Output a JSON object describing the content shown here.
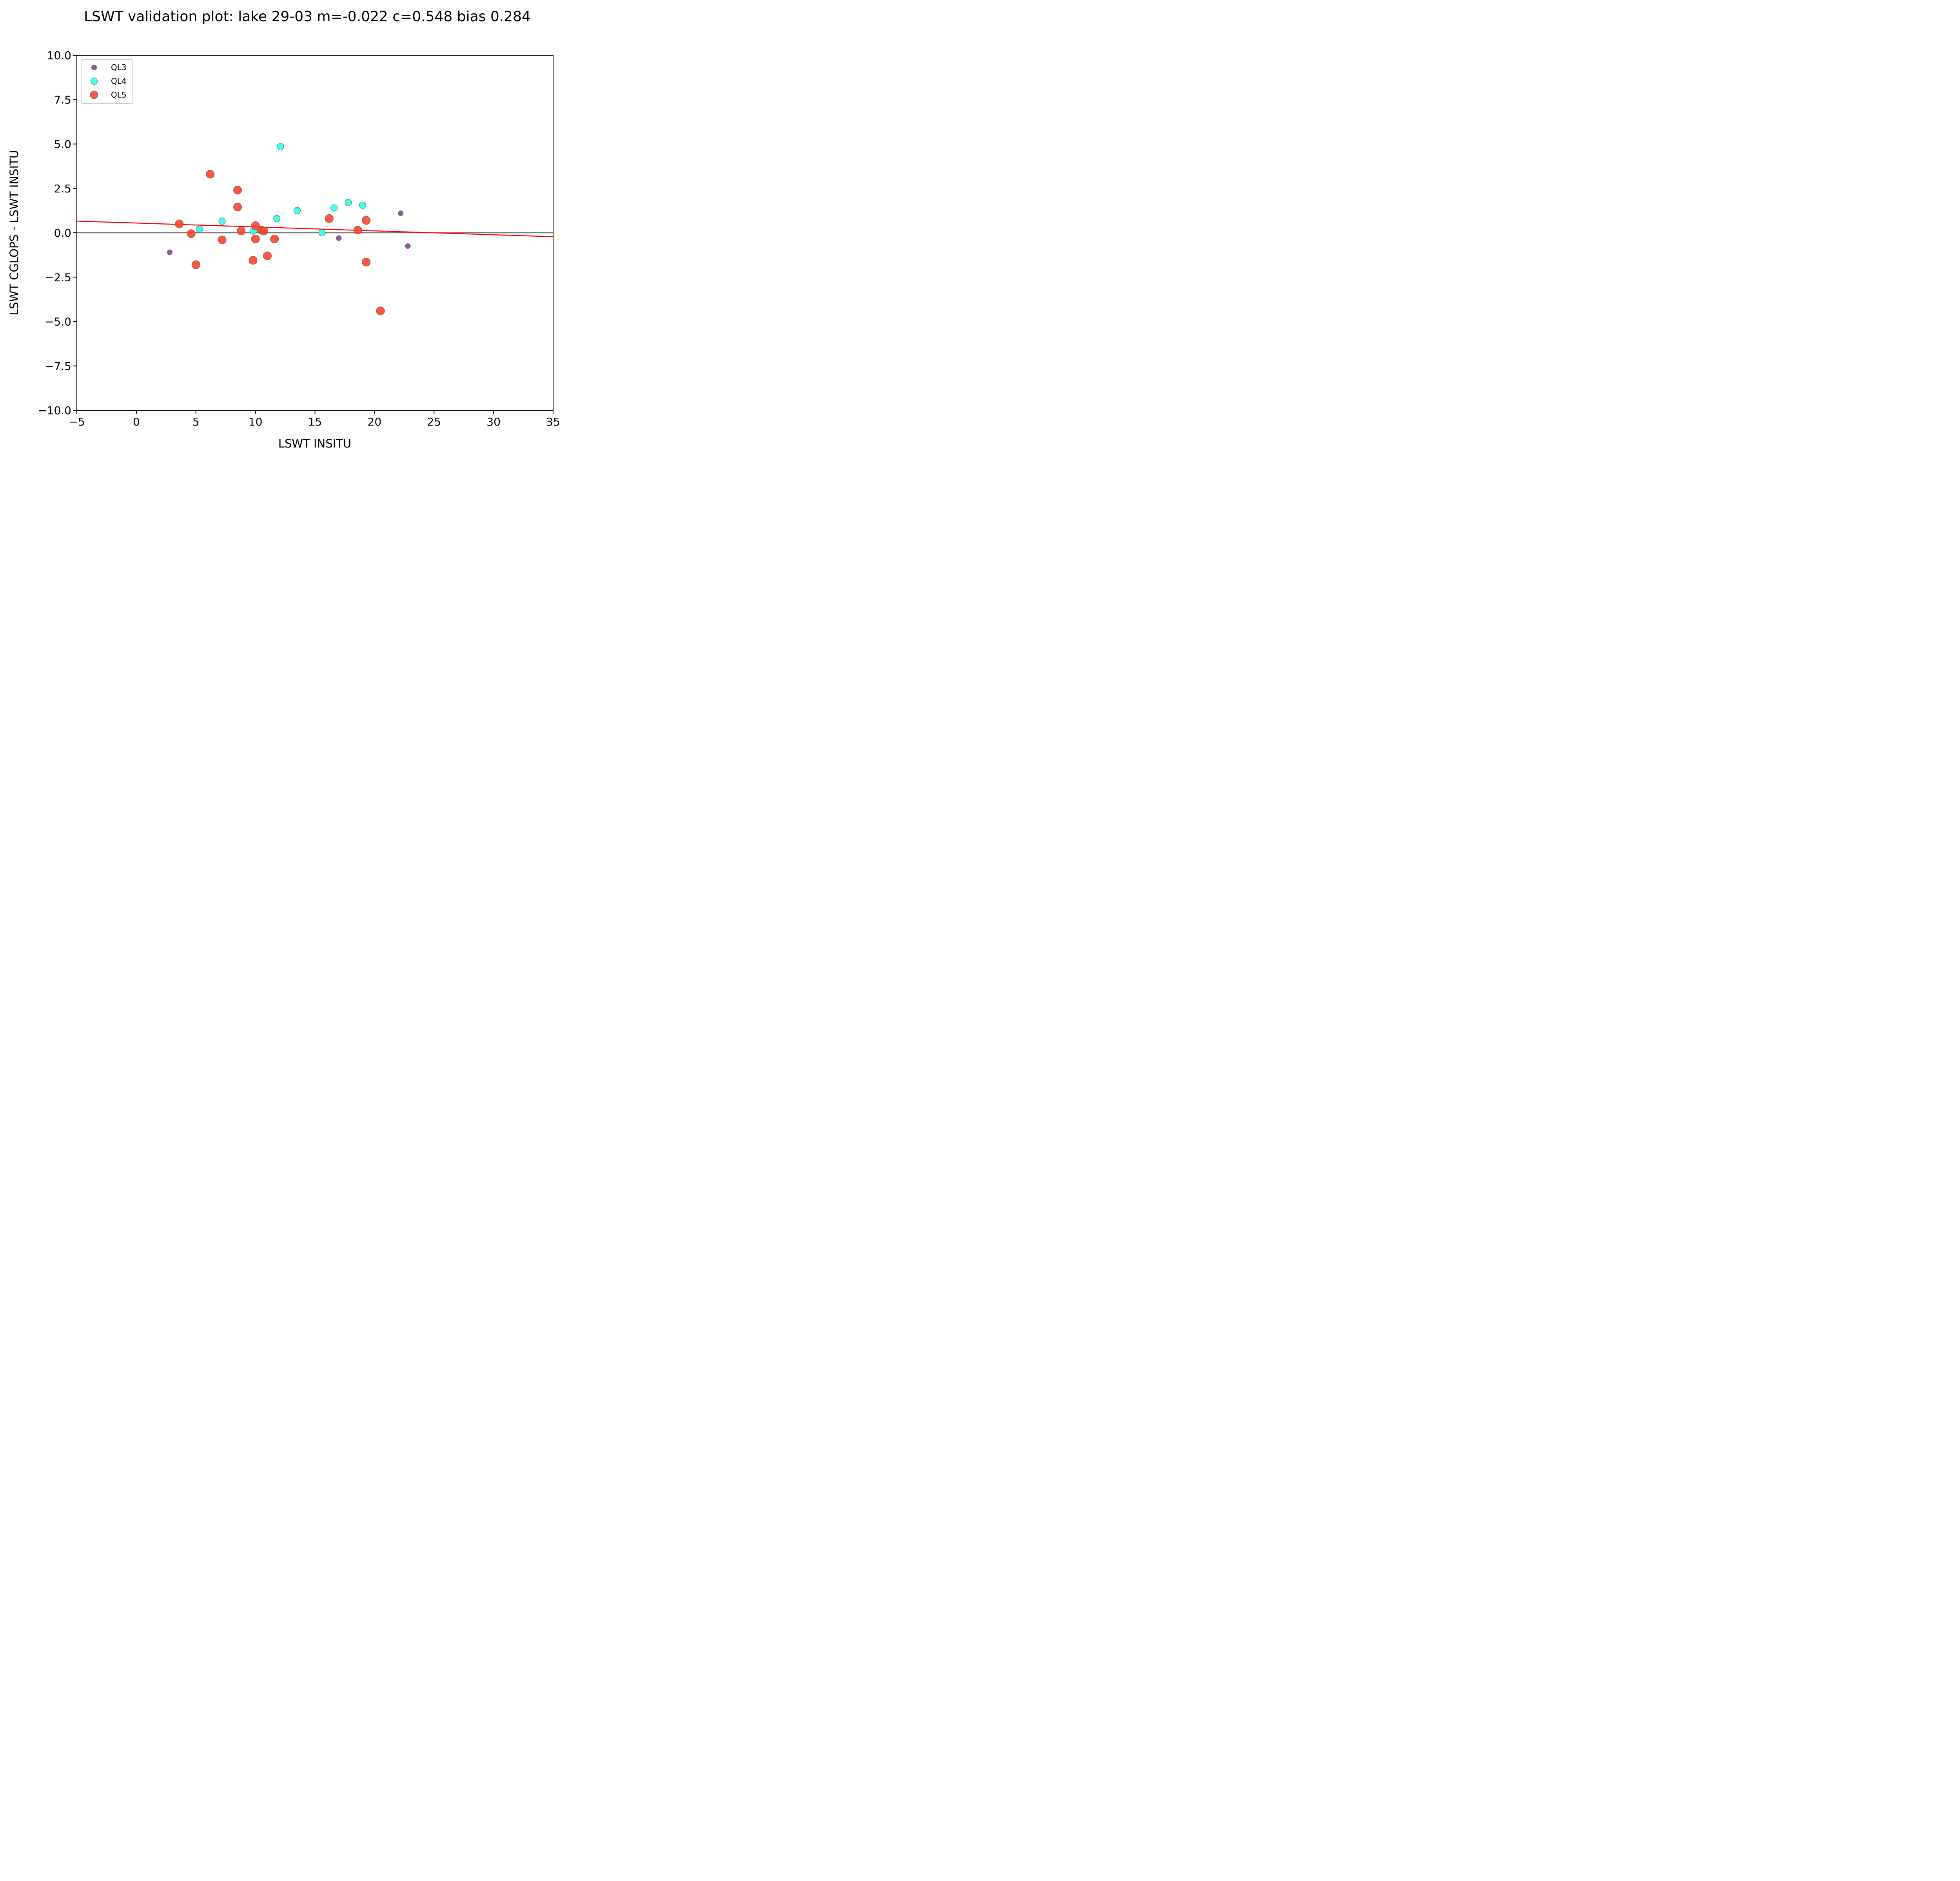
{
  "chart_data": {
    "type": "scatter",
    "title": "LSWT validation plot: lake 29-03 m=-0.022 c=0.548 bias 0.284",
    "xlabel": "LSWT INSITU",
    "ylabel": "LSWT CGLOPS - LSWT INSITU",
    "xlim": [
      -5,
      35
    ],
    "ylim": [
      -10,
      10
    ],
    "xticks": [
      -5,
      0,
      5,
      10,
      15,
      20,
      25,
      30,
      35
    ],
    "yticks": [
      -10,
      -7.5,
      -5,
      -2.5,
      0,
      2.5,
      5,
      7.5,
      10
    ],
    "xtick_labels": [
      "−5",
      "0",
      "5",
      "10",
      "15",
      "20",
      "25",
      "30",
      "35"
    ],
    "ytick_labels": [
      "−10.0",
      "−7.5",
      "−5.0",
      "−2.5",
      "0.0",
      "2.5",
      "5.0",
      "7.5",
      "10.0"
    ],
    "grid": false,
    "legend_position": "top-left",
    "series": [
      {
        "name": "QL3",
        "color": "#8e3f9a",
        "marker_size": "small",
        "points": [
          {
            "x": 2.8,
            "y": -1.1
          },
          {
            "x": 17.0,
            "y": -0.3
          },
          {
            "x": 22.2,
            "y": 1.1
          },
          {
            "x": 22.8,
            "y": -0.75
          }
        ]
      },
      {
        "name": "QL4",
        "color": "#33ffee",
        "marker_size": "medium",
        "points": [
          {
            "x": 5.3,
            "y": 0.2
          },
          {
            "x": 7.2,
            "y": 0.65
          },
          {
            "x": 9.8,
            "y": 0.1
          },
          {
            "x": 11.8,
            "y": 0.8
          },
          {
            "x": 12.1,
            "y": 4.85
          },
          {
            "x": 13.5,
            "y": 1.25
          },
          {
            "x": 15.6,
            "y": 0.0
          },
          {
            "x": 16.6,
            "y": 1.4
          },
          {
            "x": 17.8,
            "y": 1.7
          },
          {
            "x": 19.0,
            "y": 1.55
          }
        ]
      },
      {
        "name": "QL5",
        "color": "#ff4133",
        "marker_size": "large",
        "points": [
          {
            "x": 3.6,
            "y": 0.5
          },
          {
            "x": 4.6,
            "y": -0.05
          },
          {
            "x": 5.0,
            "y": -1.8
          },
          {
            "x": 6.2,
            "y": 3.3
          },
          {
            "x": 7.2,
            "y": -0.4
          },
          {
            "x": 8.5,
            "y": 2.4
          },
          {
            "x": 8.5,
            "y": 1.45
          },
          {
            "x": 8.8,
            "y": 0.1
          },
          {
            "x": 9.8,
            "y": -1.55
          },
          {
            "x": 10.0,
            "y": 0.4
          },
          {
            "x": 10.0,
            "y": -0.35
          },
          {
            "x": 10.5,
            "y": 0.15
          },
          {
            "x": 10.7,
            "y": 0.1
          },
          {
            "x": 11.0,
            "y": -1.3
          },
          {
            "x": 11.6,
            "y": -0.35
          },
          {
            "x": 16.2,
            "y": 0.8
          },
          {
            "x": 18.6,
            "y": 0.15
          },
          {
            "x": 19.3,
            "y": 0.7
          },
          {
            "x": 19.3,
            "y": -1.65
          },
          {
            "x": 20.5,
            "y": -4.4
          }
        ]
      }
    ],
    "reference_lines": [
      {
        "type": "horizontal",
        "y": 0,
        "color": "#666666"
      },
      {
        "type": "fit",
        "slope": -0.022,
        "intercept": 0.548,
        "color": "#ff0000"
      }
    ]
  }
}
